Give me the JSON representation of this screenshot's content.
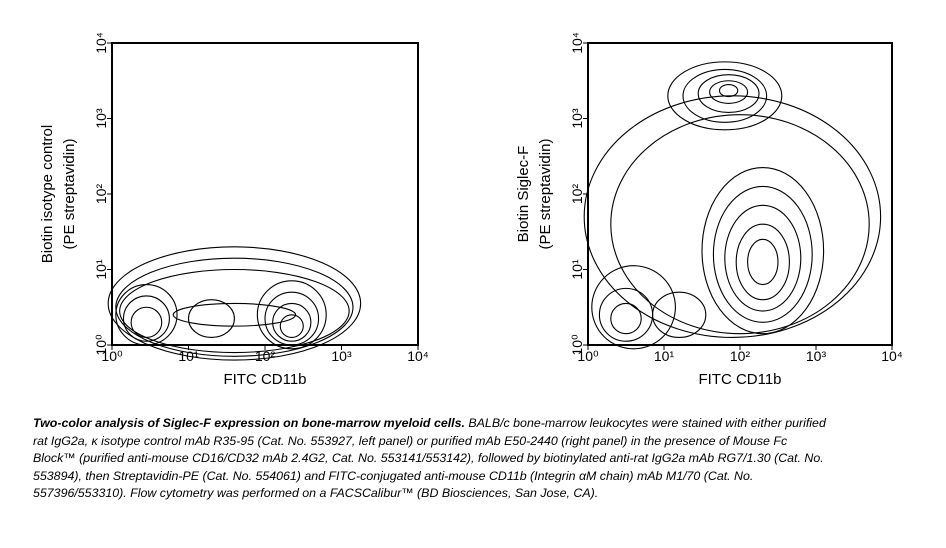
{
  "chart_data": [
    {
      "type": "contour",
      "xlabel": "FITC CD11b",
      "ylabel": [
        "Biotin isotype control",
        "(PE streptavidin)"
      ],
      "xscale": "log",
      "yscale": "log",
      "xlim": [
        1,
        10000
      ],
      "ylim": [
        1,
        10000
      ],
      "xticks": [
        {
          "value": 1,
          "label": "10⁰"
        },
        {
          "value": 10,
          "label": "10¹"
        },
        {
          "value": 100,
          "label": "10²"
        },
        {
          "value": 1000,
          "label": "10³"
        },
        {
          "value": 10000,
          "label": "10⁴"
        }
      ],
      "yticks": [
        {
          "value": 1,
          "label": "10⁰"
        },
        {
          "value": 10,
          "label": "10¹"
        },
        {
          "value": 100,
          "label": "10²"
        },
        {
          "value": 1000,
          "label": "10³"
        },
        {
          "value": 10000,
          "label": "10⁴"
        }
      ]
    },
    {
      "type": "contour",
      "xlabel": "FITC CD11b",
      "ylabel": [
        "Biotin Siglec-F",
        "(PE streptavidin)"
      ],
      "xscale": "log",
      "yscale": "log",
      "xlim": [
        1,
        10000
      ],
      "ylim": [
        1,
        10000
      ],
      "xticks": [
        {
          "value": 1,
          "label": "10⁰"
        },
        {
          "value": 10,
          "label": "10¹"
        },
        {
          "value": 100,
          "label": "10²"
        },
        {
          "value": 1000,
          "label": "10³"
        },
        {
          "value": 10000,
          "label": "10⁴"
        }
      ],
      "yticks": [
        {
          "value": 1,
          "label": "10⁰"
        },
        {
          "value": 10,
          "label": "10¹"
        },
        {
          "value": 100,
          "label": "10²"
        },
        {
          "value": 1000,
          "label": "10³"
        },
        {
          "value": 10000,
          "label": "10⁴"
        }
      ]
    }
  ],
  "caption": {
    "bold": "Two-color analysis of Siglec-F expression on bone-marrow myeloid cells.",
    "text": "BALB/c bone-marrow leukocytes were stained with either purified rat IgG2a, κ isotype control mAb R35-95 (Cat. No. 553927, left panel) or purified mAb E50-2440 (right panel) in the presence of Mouse Fc Block™ (purified anti-mouse CD16/CD32 mAb 2.4G2, Cat. No. 553141/553142), followed by biotinylated anti-rat IgG2a mAb RG7/1.30 (Cat. No. 553894), then Streptavidin-PE (Cat. No. 554061) and FITC-conjugated anti-mouse CD11b (Integrin αM chain) mAb M1/70 (Cat. No. 557396/553310). Flow cytometry was performed on a FACSCalibur™ (BD Biosciences, San Jose, CA)."
  }
}
